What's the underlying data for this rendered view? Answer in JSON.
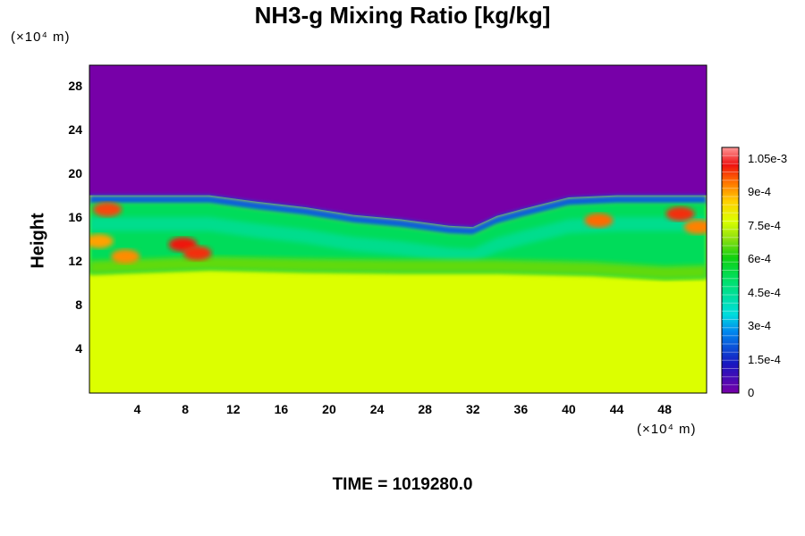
{
  "chart_data": {
    "type": "heatmap",
    "title": "NH3-g Mixing Ratio [kg/kg]",
    "xlabel": "",
    "ylabel": "Height",
    "x_unit": "(×10⁴ m)",
    "y_unit": "(×10⁴ m)",
    "xlim": [
      0,
      51.5
    ],
    "ylim": [
      0,
      30
    ],
    "x_ticks": [
      "4",
      "8",
      "12",
      "16",
      "20",
      "24",
      "28",
      "32",
      "36",
      "40",
      "44",
      "48"
    ],
    "y_ticks": [
      "4",
      "8",
      "12",
      "16",
      "20",
      "24",
      "28"
    ],
    "colorbar": {
      "min": 0,
      "max": 0.0011,
      "tick_labels": [
        "0",
        "1.5e-4",
        "3e-4",
        "4.5e-4",
        "6e-4",
        "7.5e-4",
        "9e-4",
        "1.05e-3"
      ],
      "tick_values": [
        0,
        0.00015,
        0.0003,
        0.00045,
        0.0006,
        0.00075,
        0.0009,
        0.00105
      ]
    },
    "field": {
      "background_below_cloud": 0.00077,
      "top_region_value": 0,
      "top_boundary_height": [
        [
          0,
          18.1
        ],
        [
          10,
          18.1
        ],
        [
          14,
          17.5
        ],
        [
          18,
          17.0
        ],
        [
          22,
          16.3
        ],
        [
          26,
          15.9
        ],
        [
          30,
          15.3
        ],
        [
          32,
          15.2
        ],
        [
          34,
          16.2
        ],
        [
          36,
          16.8
        ],
        [
          40,
          17.9
        ],
        [
          44,
          18.1
        ],
        [
          51.5,
          18.1
        ]
      ],
      "mixed_layer_bottom_height": [
        [
          0,
          10.9
        ],
        [
          10,
          11.3
        ],
        [
          18,
          11.1
        ],
        [
          26,
          11.0
        ],
        [
          34,
          11.0
        ],
        [
          42,
          10.8
        ],
        [
          48,
          10.4
        ],
        [
          51.5,
          10.5
        ]
      ],
      "high_value_patches": [
        {
          "x": 1.5,
          "y": 16.8,
          "value": 0.00098
        },
        {
          "x": 3.0,
          "y": 12.5,
          "value": 0.00092
        },
        {
          "x": 7.8,
          "y": 13.6,
          "value": 0.00102
        },
        {
          "x": 9.0,
          "y": 12.8,
          "value": 0.001
        },
        {
          "x": 0.8,
          "y": 13.9,
          "value": 0.0009
        },
        {
          "x": 42.5,
          "y": 15.8,
          "value": 0.00095
        },
        {
          "x": 49.3,
          "y": 16.4,
          "value": 0.001
        },
        {
          "x": 50.8,
          "y": 15.2,
          "value": 0.00093
        }
      ]
    }
  },
  "time_label": "TIME = 1019280.0"
}
